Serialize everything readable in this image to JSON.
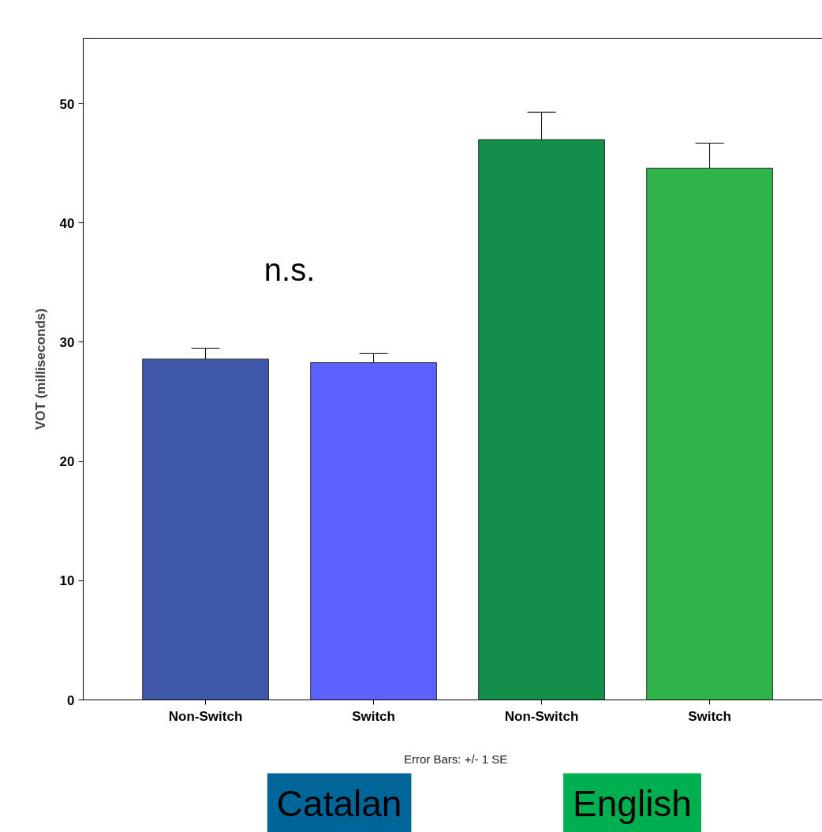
{
  "chart_data": {
    "type": "bar",
    "ylabel": "VOT (milliseconds)",
    "categories": [
      "Non-Switch",
      "Switch",
      "Non-Switch",
      "Switch"
    ],
    "values": [
      28.6,
      28.3,
      47.0,
      44.6
    ],
    "colors": [
      "#3f57a8",
      "#5b62fe",
      "#138f49",
      "#2eb549"
    ],
    "errors": [
      0.9,
      0.75,
      2.3,
      2.1
    ],
    "ylim": [
      0,
      55.5
    ],
    "yticks": [
      0,
      10,
      20,
      30,
      40,
      50
    ],
    "grid": false,
    "annotations": [
      "n.s.",
      "Error Bars: +/- 1 SE",
      "Catalan",
      "English"
    ]
  }
}
